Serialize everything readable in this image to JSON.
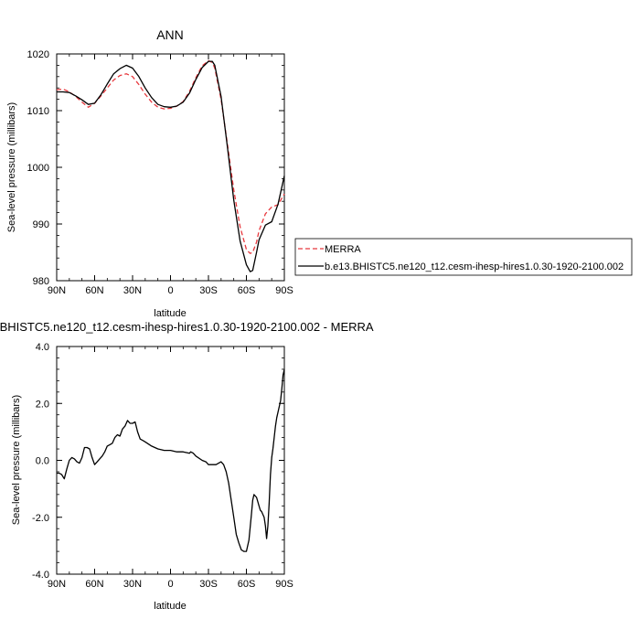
{
  "chart_data": [
    {
      "type": "line",
      "title": "ANN",
      "xlabel": "latitude",
      "ylabel": "Sea-level pressure (millibars)",
      "x_ticks": [
        "90N",
        "60N",
        "30N",
        "0",
        "30S",
        "60S",
        "90S"
      ],
      "x_tick_values": [
        -90,
        -60,
        -30,
        0,
        30,
        60,
        90
      ],
      "y_ticks": [
        "980",
        "990",
        "1000",
        "1010",
        "1020"
      ],
      "y_tick_values": [
        980,
        990,
        1000,
        1010,
        1020
      ],
      "xlim": [
        -90,
        90
      ],
      "ylim": [
        980,
        1020
      ],
      "legend_position": "right",
      "series": [
        {
          "name": "MERRA",
          "color": "#e8383d",
          "dash": "dashed",
          "x": [
            -90,
            -85,
            -80,
            -75,
            -70,
            -65,
            -60,
            -55,
            -50,
            -45,
            -40,
            -35,
            -30,
            -25,
            -20,
            -15,
            -10,
            -5,
            0,
            5,
            10,
            15,
            20,
            25,
            30,
            33,
            35,
            40,
            45,
            50,
            55,
            60,
            63,
            65,
            68,
            70,
            75,
            80,
            85,
            90
          ],
          "values": [
            1013.7,
            1013.8,
            1013.3,
            1012.5,
            1011.5,
            1010.6,
            1011.3,
            1012.6,
            1014.0,
            1015.4,
            1016.2,
            1016.5,
            1016.0,
            1014.6,
            1012.9,
            1011.5,
            1010.6,
            1010.3,
            1010.4,
            1010.8,
            1011.6,
            1013.4,
            1015.8,
            1017.9,
            1018.8,
            1018.5,
            1017.5,
            1012.0,
            1004.0,
            996.0,
            989.5,
            985.5,
            984.8,
            985.0,
            986.8,
            988.8,
            991.8,
            993.0,
            993.4,
            995.3
          ]
        },
        {
          "name": "b.e13.BHISTC5.ne120_t12.cesm-ihesp-hires1.0.30-1920-2100.002",
          "color": "#000000",
          "dash": "solid",
          "x": [
            -90,
            -85,
            -80,
            -75,
            -70,
            -65,
            -60,
            -55,
            -50,
            -45,
            -40,
            -35,
            -30,
            -25,
            -20,
            -15,
            -10,
            -5,
            0,
            5,
            10,
            15,
            20,
            25,
            30,
            33,
            35,
            40,
            45,
            50,
            55,
            60,
            63,
            65,
            68,
            70,
            75,
            80,
            85,
            90
          ],
          "values": [
            1013.3,
            1013.3,
            1013.2,
            1012.6,
            1011.9,
            1011.1,
            1011.3,
            1012.8,
            1014.7,
            1016.5,
            1017.4,
            1018.0,
            1017.5,
            1016.0,
            1014.0,
            1012.3,
            1011.1,
            1010.7,
            1010.6,
            1010.8,
            1011.5,
            1013.1,
            1015.5,
            1017.6,
            1018.7,
            1018.7,
            1018.0,
            1012.5,
            1003.5,
            994.2,
            987.0,
            982.8,
            981.6,
            981.8,
            985.0,
            987.2,
            989.8,
            990.4,
            993.5,
            998.5
          ]
        }
      ]
    },
    {
      "type": "line",
      "title": "b.e13.BHISTC5.ne120_t12.cesm-ihesp-hires1.0.30-1920-2100.002 - MERRA",
      "xlabel": "latitude",
      "ylabel": "Sea-level pressure (millibars)",
      "x_ticks": [
        "90N",
        "60N",
        "30N",
        "0",
        "30S",
        "60S",
        "90S"
      ],
      "x_tick_values": [
        -90,
        -60,
        -30,
        0,
        30,
        60,
        90
      ],
      "y_ticks": [
        "-4.0",
        "-2.0",
        "0.0",
        "2.0",
        "4.0"
      ],
      "y_tick_values": [
        -4,
        -2,
        0,
        2,
        4
      ],
      "xlim": [
        -90,
        90
      ],
      "ylim": [
        -4,
        4
      ],
      "series": [
        {
          "color": "#000000",
          "dash": "solid",
          "x": [
            -90,
            -88,
            -86,
            -84,
            -82,
            -80,
            -78,
            -76,
            -74,
            -72,
            -70,
            -68,
            -66,
            -64,
            -62,
            -60,
            -58,
            -56,
            -54,
            -52,
            -50,
            -48,
            -46,
            -44,
            -42,
            -40,
            -38,
            -36,
            -34,
            -32,
            -30,
            -28,
            -26,
            -24,
            -22,
            -20,
            -15,
            -10,
            -5,
            0,
            5,
            10,
            15,
            16,
            18,
            20,
            25,
            28,
            30,
            32,
            34,
            36,
            38,
            40,
            42,
            44,
            46,
            48,
            50,
            52,
            54,
            56,
            58,
            60,
            62,
            64,
            65,
            66,
            68,
            70,
            71,
            72,
            73,
            74,
            75,
            76,
            77,
            78,
            79,
            80,
            81,
            82,
            83,
            84,
            85,
            86,
            87,
            88,
            89,
            90
          ],
          "values": [
            -0.45,
            -0.45,
            -0.5,
            -0.65,
            -0.3,
            0.0,
            0.1,
            0.05,
            -0.05,
            -0.1,
            0.1,
            0.45,
            0.45,
            0.4,
            0.1,
            -0.15,
            -0.05,
            0.05,
            0.15,
            0.3,
            0.5,
            0.55,
            0.6,
            0.8,
            0.9,
            0.85,
            1.1,
            1.2,
            1.4,
            1.3,
            1.3,
            1.35,
            1.0,
            0.75,
            0.7,
            0.65,
            0.5,
            0.4,
            0.35,
            0.35,
            0.3,
            0.3,
            0.25,
            0.3,
            0.25,
            0.15,
            0.0,
            -0.05,
            -0.15,
            -0.15,
            -0.15,
            -0.15,
            -0.1,
            -0.05,
            -0.15,
            -0.4,
            -0.8,
            -1.4,
            -2.0,
            -2.6,
            -2.9,
            -3.15,
            -3.2,
            -3.2,
            -2.8,
            -1.9,
            -1.4,
            -1.2,
            -1.3,
            -1.6,
            -1.75,
            -1.8,
            -1.9,
            -2.0,
            -2.3,
            -2.75,
            -2.3,
            -1.5,
            -0.5,
            0.1,
            0.4,
            0.8,
            1.2,
            1.5,
            1.7,
            1.9,
            2.1,
            2.5,
            3.0,
            3.2
          ]
        }
      ]
    }
  ]
}
